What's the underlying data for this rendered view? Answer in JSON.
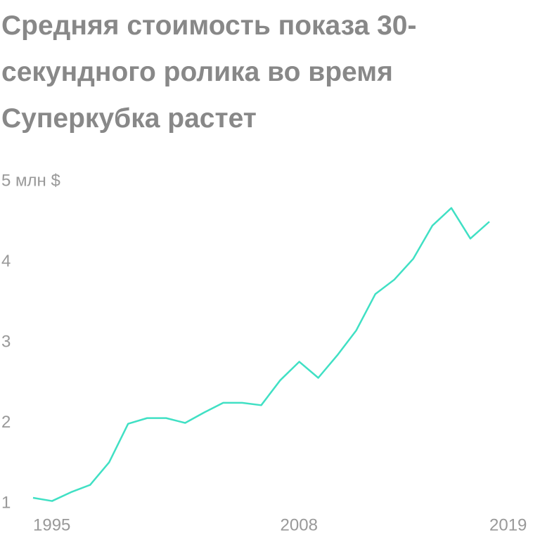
{
  "chart_data": {
    "type": "line",
    "title": "Средняя стоимость показа 30-секундного ролика во время Суперкубка растет",
    "x": [
      1995,
      1996,
      1997,
      1998,
      1999,
      2000,
      2001,
      2002,
      2003,
      2004,
      2005,
      2006,
      2007,
      2008,
      2009,
      2010,
      2011,
      2012,
      2013,
      2014,
      2015,
      2016,
      2017,
      2018,
      2019
    ],
    "series": [
      {
        "color": "#40e0c4",
        "values": [
          1.07,
          1.03,
          1.14,
          1.23,
          1.51,
          1.99,
          2.06,
          2.06,
          2.0,
          2.13,
          2.25,
          2.25,
          2.22,
          2.53,
          2.76,
          2.56,
          2.84,
          3.15,
          3.6,
          3.78,
          4.04,
          4.45,
          4.67,
          4.29,
          4.5
        ]
      }
    ],
    "xlim": [
      1995,
      2019
    ],
    "xticks": [
      1995,
      2008,
      2019
    ],
    "ylim": [
      1,
      5
    ],
    "yticks": [
      1,
      2,
      3,
      4,
      {
        "value": 5,
        "label": "5 млн $"
      }
    ],
    "grid": false
  }
}
